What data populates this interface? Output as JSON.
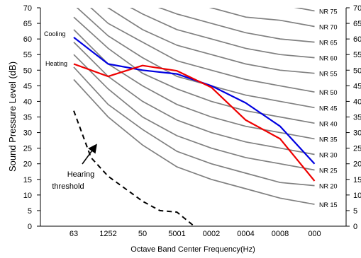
{
  "chart_data": {
    "type": "line",
    "categories": [
      "63",
      "1252",
      "50",
      "5001",
      "0002",
      "0004",
      "0008",
      "000"
    ],
    "xlabel": "Octave Band Center Frequency(Hz)",
    "ylabel": "Sound Pressure Level (dB)",
    "ylim": [
      0,
      70
    ],
    "yticks": [
      0,
      5,
      10,
      15,
      20,
      25,
      30,
      35,
      40,
      45,
      50,
      55,
      60,
      65,
      70
    ],
    "grid": false,
    "nr_curves": [
      {
        "name": "NR 15",
        "values": [
          47,
          35,
          26,
          19,
          15,
          12,
          9,
          7
        ]
      },
      {
        "name": "NR 20",
        "values": [
          51,
          39,
          31,
          24,
          20,
          17,
          14,
          13
        ]
      },
      {
        "name": "NR 25",
        "values": [
          55,
          44,
          35,
          29,
          25,
          22,
          20,
          18
        ]
      },
      {
        "name": "NR 30",
        "values": [
          59,
          48,
          40,
          34,
          30,
          27,
          25,
          23
        ]
      },
      {
        "name": "NR 35",
        "values": [
          63,
          52,
          45,
          39,
          35,
          32,
          30,
          28
        ]
      },
      {
        "name": "NR 40",
        "values": [
          67,
          57,
          49,
          44,
          40,
          37,
          35,
          33
        ]
      },
      {
        "name": "NR 45",
        "values": [
          71,
          61,
          54,
          48,
          45,
          42,
          40,
          38
        ]
      },
      {
        "name": "NR 50",
        "values": [
          75,
          65,
          59,
          53,
          50,
          47,
          45,
          43
        ]
      },
      {
        "name": "NR 55",
        "values": [
          79,
          70,
          63,
          58,
          55,
          52,
          50,
          49
        ]
      },
      {
        "name": "NR 60",
        "values": [
          83,
          74,
          68,
          63,
          60,
          57,
          55,
          54
        ]
      },
      {
        "name": "NR 65",
        "values": [
          87,
          78,
          72,
          68,
          65,
          62,
          60,
          59
        ]
      },
      {
        "name": "NR 70",
        "values": [
          91,
          83,
          77,
          73,
          70,
          67,
          66,
          64
        ]
      },
      {
        "name": "NR 75",
        "values": [
          95,
          87,
          82,
          78,
          75,
          73,
          71,
          69
        ]
      }
    ],
    "series": [
      {
        "name": "Cooling",
        "color": "#0000e0",
        "values": [
          60.5,
          52,
          50,
          48.8,
          45,
          39.5,
          32,
          20
        ]
      },
      {
        "name": "Heating",
        "color": "#ee0000",
        "values": [
          52,
          48,
          51.5,
          49.8,
          44.5,
          34,
          28,
          14.5
        ]
      },
      {
        "name": "Hearing threshold",
        "color": "#000000",
        "dash": true,
        "x": [
          0,
          0.5,
          1,
          1.5,
          2,
          2.5,
          3,
          3.5
        ],
        "values": [
          37,
          22,
          16,
          12,
          8,
          5,
          4.5,
          0
        ]
      }
    ],
    "annotation": {
      "line1": "Hearing",
      "line2": "threshold"
    }
  }
}
